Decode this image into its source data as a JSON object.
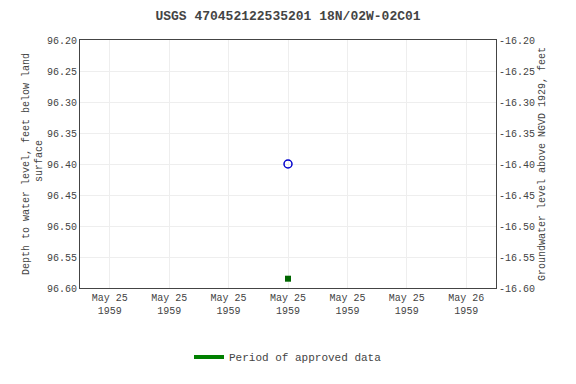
{
  "chart_data": {
    "type": "scatter",
    "title": "USGS 470452122535201 18N/02W-02C01",
    "categories": [
      "May 25\n1959",
      "May 25\n1959",
      "May 25\n1959",
      "May 25\n1959",
      "May 25\n1959",
      "May 25\n1959",
      "May 26\n1959"
    ],
    "ylabel": "Depth to water level, feet below land\n surface",
    "y2label": "Groundwater level above NGVD 1929, feet",
    "series": [
      {
        "type": "scatter",
        "marker": "circle-open",
        "color": "#0000cc",
        "values": [
          null,
          null,
          null,
          96.4,
          null,
          null,
          null
        ]
      },
      {
        "type": "scatter",
        "marker": "square",
        "color": "#006600",
        "values": [
          null,
          null,
          null,
          96.585,
          null,
          null,
          null
        ]
      },
      {
        "type": "line",
        "name": "Period of approved data",
        "color": "#008000",
        "values": [
          null,
          null,
          null,
          null,
          null,
          null,
          null
        ]
      }
    ],
    "ylim": [
      96.6,
      96.2
    ],
    "yticks": [
      {
        "value": 96.2,
        "label": "96.20"
      },
      96.25,
      {
        "value": 96.3,
        "label": "96.30"
      },
      96.35,
      {
        "value": 96.4,
        "label": "96.40"
      },
      96.45,
      {
        "value": 96.5,
        "label": "96.50"
      },
      96.55,
      {
        "value": 96.6,
        "label": "96.60"
      }
    ],
    "y2lim": [
      -16.6,
      -16.2
    ],
    "y2ticks": [
      {
        "value": -16.2,
        "label": "-16.20"
      },
      -16.25,
      {
        "value": -16.3,
        "label": "-16.30"
      },
      -16.35,
      {
        "value": -16.4,
        "label": "-16.40"
      },
      -16.45,
      {
        "value": -16.5,
        "label": "-16.50"
      },
      -16.55,
      {
        "value": -16.6,
        "label": "-16.60"
      }
    ],
    "grid": true,
    "legend": "bottom"
  }
}
